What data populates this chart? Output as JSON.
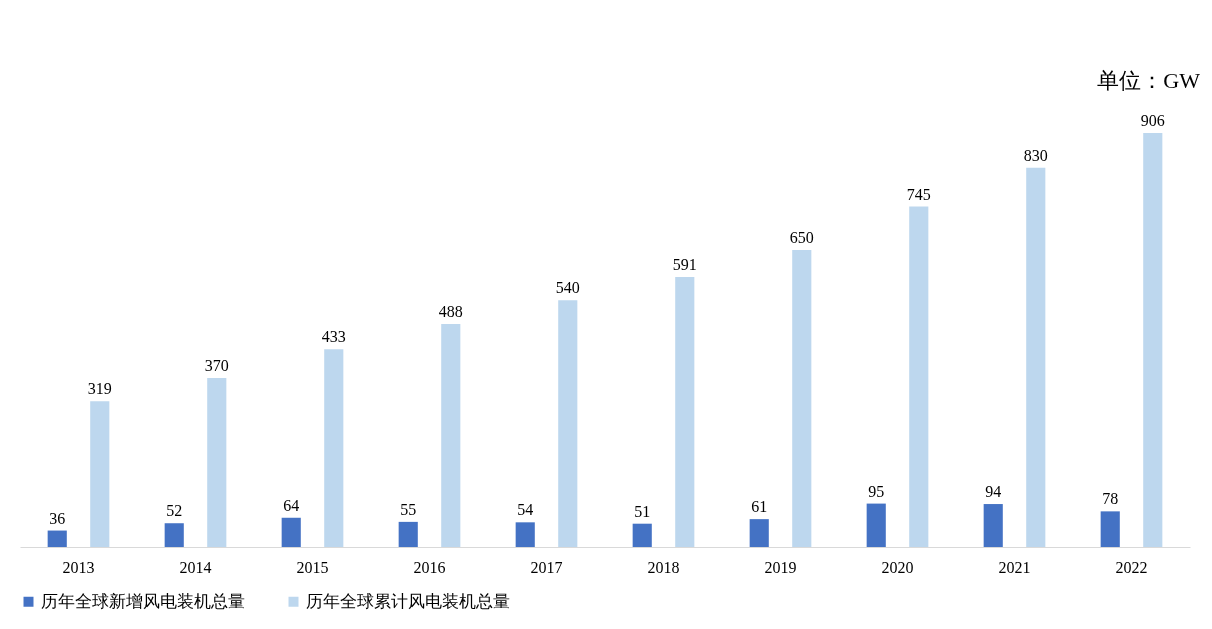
{
  "chart_data": {
    "type": "bar",
    "categories": [
      "2013",
      "2014",
      "2015",
      "2016",
      "2017",
      "2018",
      "2019",
      "2020",
      "2021",
      "2022"
    ],
    "series": [
      {
        "name": "历年全球新增风电装机总量",
        "color": "#4472c4",
        "values": [
          36,
          52,
          64,
          55,
          54,
          51,
          61,
          95,
          94,
          78
        ]
      },
      {
        "name": "历年全球累计风电装机总量",
        "color": "#bdd7ee",
        "values": [
          319,
          370,
          433,
          488,
          540,
          591,
          650,
          745,
          830,
          906
        ]
      }
    ],
    "data_labels": true,
    "legend": "bottom",
    "grid": false,
    "annotations": [
      "单位：GW"
    ]
  }
}
